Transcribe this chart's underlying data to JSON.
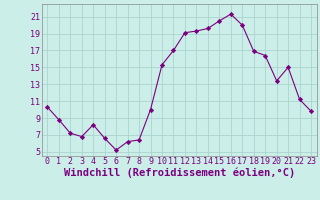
{
  "x": [
    0,
    1,
    2,
    3,
    4,
    5,
    6,
    7,
    8,
    9,
    10,
    11,
    12,
    13,
    14,
    15,
    16,
    17,
    18,
    19,
    20,
    21,
    22,
    23
  ],
  "y": [
    10.3,
    8.8,
    7.2,
    6.8,
    8.2,
    6.6,
    5.2,
    6.2,
    6.4,
    10.0,
    15.3,
    17.0,
    19.1,
    19.3,
    19.6,
    20.5,
    21.3,
    20.0,
    16.9,
    16.4,
    13.4,
    15.0,
    11.2,
    9.8
  ],
  "line_color": "#7B0080",
  "marker": "D",
  "marker_size": 2.2,
  "bg_color": "#cceee8",
  "grid_color": "#aad4ce",
  "xlabel": "Windchill (Refroidissement éolien,°C)",
  "xlabel_fontsize": 7.5,
  "ytick_values": [
    5,
    7,
    9,
    11,
    13,
    15,
    17,
    19,
    21
  ],
  "xtick_values": [
    0,
    1,
    2,
    3,
    4,
    5,
    6,
    7,
    8,
    9,
    10,
    11,
    12,
    13,
    14,
    15,
    16,
    17,
    18,
    19,
    20,
    21,
    22,
    23
  ],
  "ylim": [
    4.5,
    22.5
  ],
  "xlim": [
    -0.5,
    23.5
  ],
  "tick_fontsize": 6.0,
  "tick_color": "#7B0080"
}
